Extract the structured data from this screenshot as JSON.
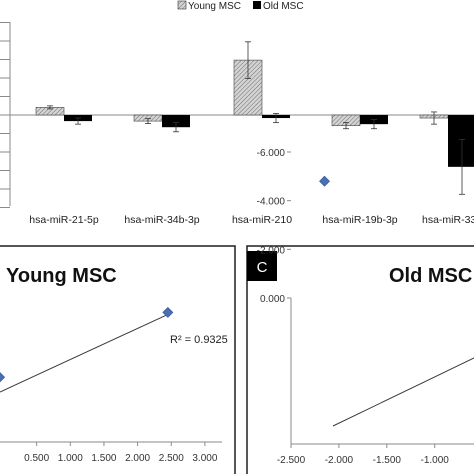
{
  "colors": {
    "young": "#b9b9b9",
    "old": "#000000",
    "marker": "#4a6fb5",
    "panel_border": "#1f1f1f",
    "trendline": "#3a3a3a"
  },
  "chart_data": [
    {
      "type": "bar",
      "legend": {
        "position": "top",
        "entries": [
          "Young MSC",
          "Old MSC"
        ]
      },
      "categories": [
        "hsa-miR-21-5p",
        "hsa-miR-34b-3p",
        "hsa-miR-210",
        "hsa-miR-19b-3p",
        "hsa-miR-33"
      ],
      "series": [
        {
          "name": "Young MSC",
          "pattern": "hatched-gray",
          "values": [
            0.25,
            -0.2,
            1.8,
            -0.35,
            -0.1
          ],
          "errors": [
            0.05,
            0.08,
            0.6,
            0.1,
            0.2
          ]
        },
        {
          "name": "Old MSC",
          "pattern": "solid-black",
          "values": [
            -0.2,
            -0.4,
            -0.1,
            -0.3,
            -1.7
          ],
          "errors": [
            0.1,
            0.15,
            0.15,
            0.15,
            0.9
          ]
        }
      ],
      "ylim": [
        -3.0,
        3.0
      ],
      "grid": false,
      "y_tick_labels": "cropped"
    },
    {
      "type": "scatter",
      "title": "Young MSC",
      "points": [
        {
          "x": -0.05,
          "y": 2.4
        },
        {
          "x": 2.45,
          "y": 4.8
        }
      ],
      "trendline": true,
      "annotation": "R² = 0.9325",
      "xticks": [
        "0.500",
        "1.000",
        "1.500",
        "2.000",
        "2.500",
        "3.000"
      ],
      "xlim": [
        0.0,
        3.0
      ]
    },
    {
      "type": "scatter",
      "panel_label": "C",
      "title": "Old MSC",
      "points": [
        {
          "x": -2.15,
          "y": -4.8
        }
      ],
      "trendline": true,
      "yticks": [
        "0.000",
        "-2.000",
        "-4.000",
        "-6.000"
      ],
      "xticks": [
        "-2.500",
        "-2.000",
        "-1.500",
        "-1.000"
      ],
      "xlim": [
        -2.5,
        -0.6
      ],
      "ylim": [
        -6.0,
        0.0
      ]
    }
  ]
}
